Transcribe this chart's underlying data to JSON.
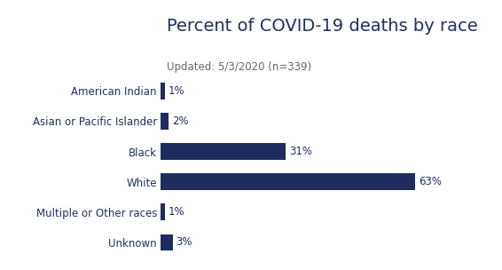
{
  "title": "Percent of COVID-19 deaths by race",
  "subtitle": "Updated: 5/3/2020 (n=339)",
  "categories": [
    "American Indian",
    "Asian or Pacific Islander",
    "Black",
    "White",
    "Multiple or Other races",
    "Unknown"
  ],
  "values": [
    1,
    2,
    31,
    63,
    1,
    3
  ],
  "bar_color": "#1e2d5e",
  "label_color": "#1e3060",
  "title_color": "#1e3060",
  "subtitle_color": "#666666",
  "background_color": "#ffffff",
  "title_fontsize": 14,
  "subtitle_fontsize": 8.5,
  "label_fontsize": 8.5,
  "value_fontsize": 8.5,
  "xlim": [
    0,
    72
  ]
}
